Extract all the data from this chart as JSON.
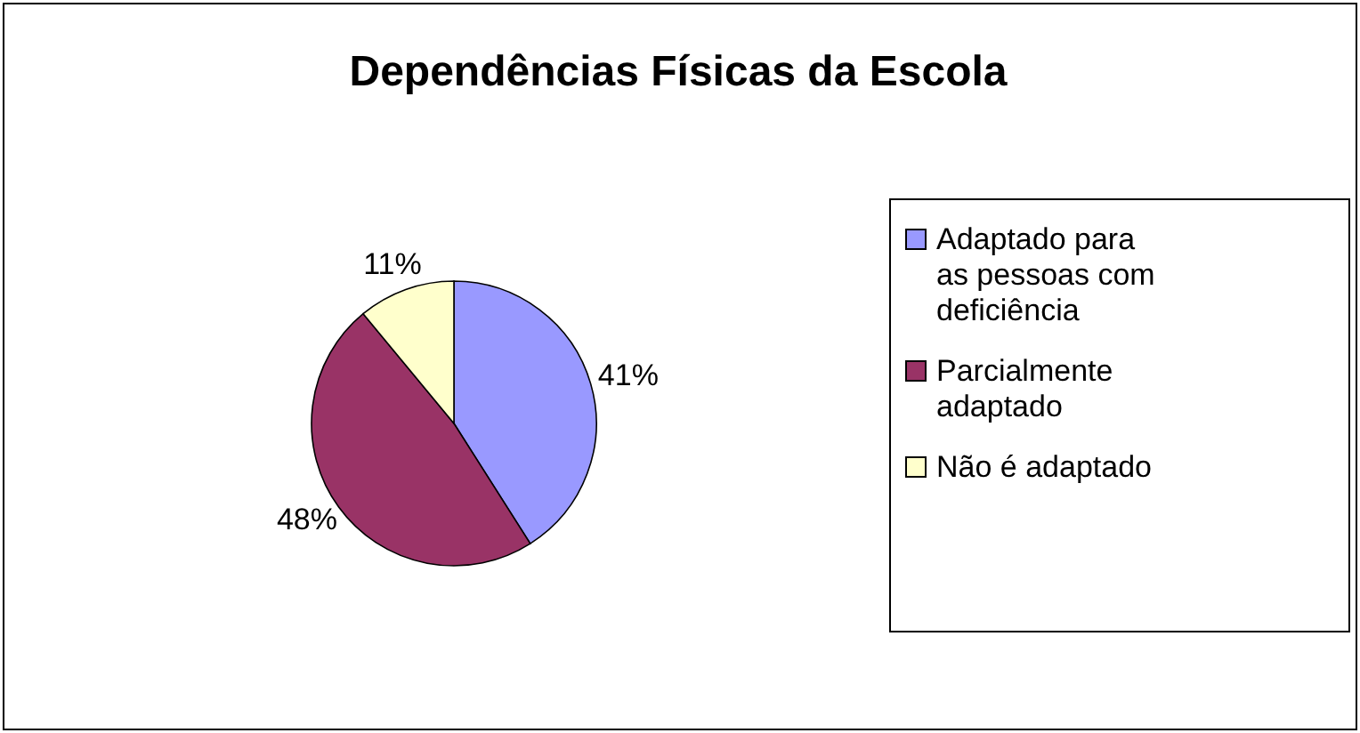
{
  "chart_data": {
    "type": "pie",
    "title": "Dependências Físicas da Escola",
    "categories": [
      "Adaptado para as pessoas com deficiência",
      "Parcialmente adaptado",
      "Não é adaptado"
    ],
    "values": [
      41,
      48,
      11
    ],
    "value_labels": [
      "41%",
      "48%",
      "11%"
    ],
    "colors": [
      "#9999ff",
      "#993366",
      "#ffffcc"
    ],
    "legend": "right"
  }
}
